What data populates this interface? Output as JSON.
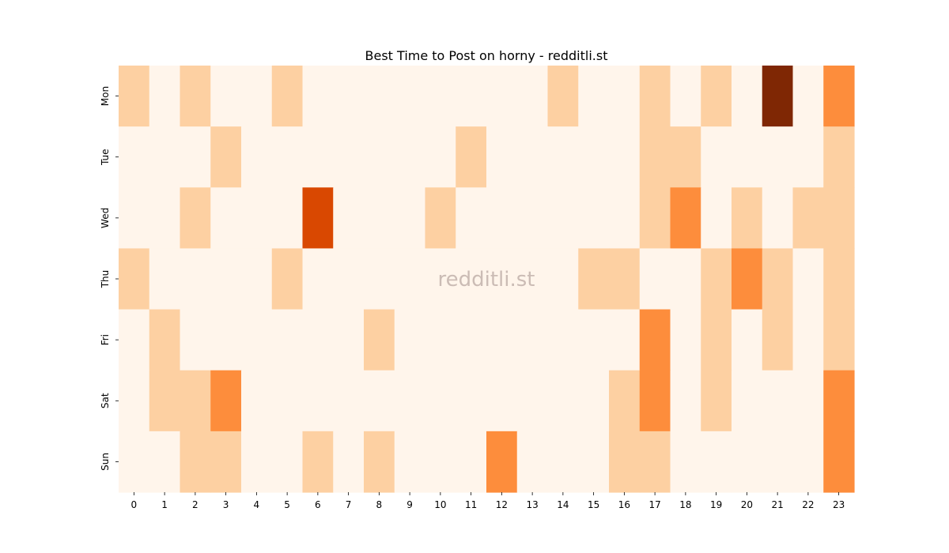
{
  "chart_data": {
    "type": "heatmap",
    "title": "Best Time to Post on horny - redditli.st",
    "xlabel": "",
    "ylabel": "",
    "x_labels": [
      "0",
      "1",
      "2",
      "3",
      "4",
      "5",
      "6",
      "7",
      "8",
      "9",
      "10",
      "11",
      "12",
      "13",
      "14",
      "15",
      "16",
      "17",
      "18",
      "19",
      "20",
      "21",
      "22",
      "23"
    ],
    "y_labels": [
      "Mon",
      "Tue",
      "Wed",
      "Thu",
      "Fri",
      "Sat",
      "Sun"
    ],
    "values": [
      [
        1,
        0,
        1,
        0,
        0,
        1,
        0,
        0,
        0,
        0,
        0,
        0,
        0,
        0,
        1,
        0,
        0,
        1,
        0,
        1,
        0,
        4,
        0,
        2
      ],
      [
        0,
        0,
        0,
        1,
        0,
        0,
        0,
        0,
        0,
        0,
        0,
        1,
        0,
        0,
        0,
        0,
        0,
        1,
        1,
        0,
        0,
        0,
        0,
        1
      ],
      [
        0,
        0,
        1,
        0,
        0,
        0,
        3,
        0,
        0,
        0,
        1,
        0,
        0,
        0,
        0,
        0,
        0,
        1,
        2,
        0,
        1,
        0,
        1,
        1
      ],
      [
        1,
        0,
        0,
        0,
        0,
        1,
        0,
        0,
        0,
        0,
        0,
        0,
        0,
        0,
        0,
        1,
        1,
        0,
        0,
        1,
        2,
        1,
        0,
        1
      ],
      [
        0,
        1,
        0,
        0,
        0,
        0,
        0,
        0,
        1,
        0,
        0,
        0,
        0,
        0,
        0,
        0,
        0,
        2,
        0,
        1,
        0,
        1,
        0,
        1
      ],
      [
        0,
        1,
        1,
        2,
        0,
        0,
        0,
        0,
        0,
        0,
        0,
        0,
        0,
        0,
        0,
        0,
        1,
        2,
        0,
        1,
        0,
        0,
        0,
        2
      ],
      [
        0,
        0,
        1,
        1,
        0,
        0,
        1,
        0,
        1,
        0,
        0,
        0,
        2,
        0,
        0,
        0,
        1,
        1,
        0,
        0,
        0,
        0,
        0,
        2
      ]
    ],
    "color_scale": {
      "name": "Oranges",
      "min": 0,
      "max": 4,
      "colors": [
        "#fff5eb",
        "#fdd0a2",
        "#fd8d3c",
        "#d94801",
        "#7f2704"
      ]
    },
    "colorbar": false,
    "grid": false,
    "watermark": "redditli.st"
  }
}
